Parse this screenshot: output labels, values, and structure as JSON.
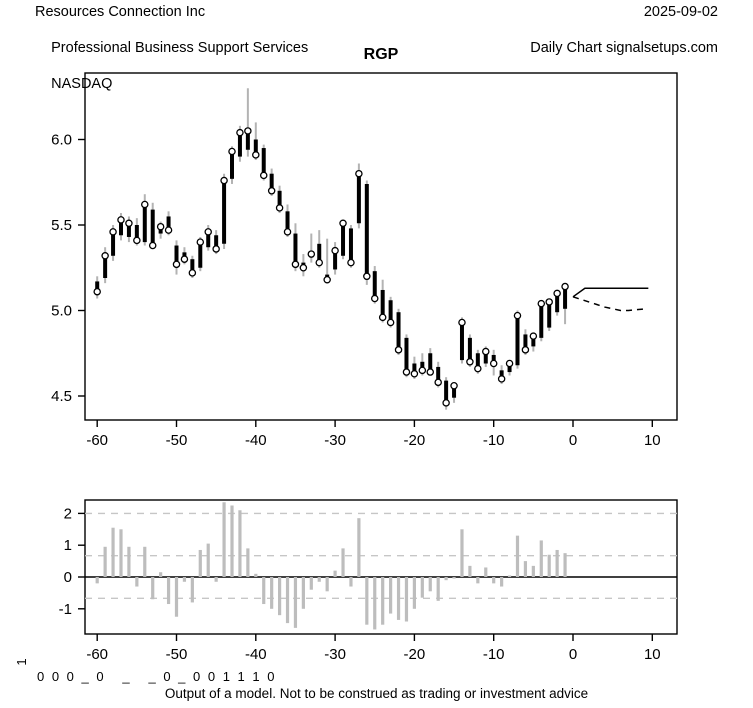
{
  "header": {
    "company": "Resources Connection Inc",
    "industry": "Professional Business Support Services",
    "exchange": "NASDAQ",
    "date": "2025-09-02",
    "source": "Daily Chart signalsetups.com"
  },
  "title": "RGP",
  "footer": {
    "signal_row": "0 0 0 _ 0   _   _ 0 _ 0 0 1 1 1 0",
    "disclaimer": "Output of a model. Not to be construed as trading or investment advice"
  },
  "colors": {
    "body": "#000000",
    "wick": "#b3b3b3",
    "circle_fill": "#ffffff",
    "indicator_bar": "#bdbdbd",
    "grid_dashed": "#c6c6c6",
    "axis": "#000000"
  },
  "chart_data": [
    {
      "type": "ohlc",
      "title": "RGP",
      "xlabel": "",
      "ylabel": "",
      "xticks": [
        -60,
        -50,
        -40,
        -30,
        -20,
        -10,
        0,
        10
      ],
      "yticks": [
        4.5,
        5.0,
        5.5,
        6.0
      ],
      "xlim": [
        -61.5,
        13.1
      ],
      "ylim": [
        4.36,
        6.38
      ],
      "grid": false,
      "x": [
        -60,
        -59,
        -58,
        -57,
        -56,
        -55,
        -54,
        -53,
        -52,
        -51,
        -50,
        -49,
        -48,
        -47,
        -46,
        -45,
        -44,
        -43,
        -42,
        -41,
        -40,
        -39,
        -38,
        -37,
        -36,
        -35,
        -34,
        -33,
        -32,
        -31,
        -30,
        -29,
        -28,
        -27,
        -26,
        -25,
        -24,
        -23,
        -22,
        -21,
        -20,
        -19,
        -18,
        -17,
        -16,
        -15,
        -14,
        -13,
        -12,
        -11,
        -10,
        -9,
        -8,
        -7,
        -6,
        -5,
        -4,
        -3,
        -2,
        -1
      ],
      "open": [
        5.17,
        5.19,
        5.32,
        5.44,
        5.43,
        5.5,
        5.4,
        5.59,
        5.45,
        5.55,
        5.38,
        5.34,
        5.3,
        5.25,
        5.37,
        5.44,
        5.39,
        5.77,
        5.9,
        5.94,
        6.0,
        5.95,
        5.8,
        5.7,
        5.58,
        5.45,
        5.28,
        5.31,
        5.39,
        5.21,
        5.24,
        5.32,
        5.48,
        5.51,
        5.74,
        5.23,
        5.12,
        5.06,
        4.99,
        4.84,
        4.69,
        4.7,
        4.75,
        4.67,
        4.59,
        4.49,
        4.71,
        4.84,
        4.75,
        4.69,
        4.74,
        4.65,
        4.64,
        4.68,
        4.86,
        4.79,
        4.84,
        4.9,
        4.99,
        5.01
      ],
      "high": [
        5.2,
        5.37,
        5.5,
        5.57,
        5.55,
        5.54,
        5.68,
        5.63,
        5.52,
        5.58,
        5.41,
        5.37,
        5.32,
        5.43,
        5.5,
        5.47,
        5.8,
        5.96,
        6.08,
        6.3,
        6.1,
        5.97,
        5.83,
        5.73,
        5.62,
        5.51,
        5.33,
        5.45,
        5.47,
        5.42,
        5.4,
        5.53,
        5.5,
        5.86,
        5.76,
        5.26,
        5.18,
        5.08,
        5.01,
        4.86,
        4.73,
        4.75,
        4.78,
        4.7,
        4.61,
        4.58,
        4.96,
        4.86,
        4.77,
        4.79,
        4.77,
        4.68,
        4.71,
        5.0,
        4.89,
        4.87,
        5.06,
        5.07,
        5.12,
        5.16
      ],
      "low": [
        5.07,
        5.16,
        5.29,
        5.41,
        5.4,
        5.38,
        5.38,
        5.36,
        5.42,
        5.44,
        5.21,
        5.27,
        5.19,
        5.23,
        5.35,
        5.33,
        5.36,
        5.74,
        5.87,
        5.9,
        5.88,
        5.76,
        5.67,
        5.57,
        5.43,
        5.23,
        5.2,
        5.28,
        5.25,
        5.16,
        5.21,
        5.3,
        5.25,
        5.48,
        5.15,
        5.04,
        4.93,
        4.9,
        4.74,
        4.61,
        4.6,
        4.62,
        4.62,
        4.55,
        4.42,
        4.46,
        4.69,
        4.67,
        4.63,
        4.67,
        4.62,
        4.57,
        4.62,
        4.66,
        4.74,
        4.76,
        4.82,
        4.88,
        4.97,
        4.92
      ],
      "close": [
        5.11,
        5.32,
        5.46,
        5.53,
        5.51,
        5.41,
        5.62,
        5.38,
        5.49,
        5.47,
        5.27,
        5.3,
        5.22,
        5.4,
        5.46,
        5.36,
        5.76,
        5.93,
        6.04,
        6.05,
        5.91,
        5.79,
        5.7,
        5.6,
        5.46,
        5.27,
        5.25,
        5.33,
        5.28,
        5.18,
        5.35,
        5.51,
        5.28,
        5.8,
        5.2,
        5.07,
        4.96,
        4.93,
        4.77,
        4.64,
        4.63,
        4.65,
        4.64,
        4.58,
        4.46,
        4.56,
        4.93,
        4.7,
        4.66,
        4.76,
        4.69,
        4.6,
        4.69,
        4.97,
        4.77,
        4.85,
        5.04,
        5.05,
        5.1,
        5.14
      ],
      "forecast_solid": [
        [
          0,
          5.08
        ],
        [
          1.5,
          5.13
        ],
        [
          9.5,
          5.13
        ]
      ],
      "forecast_dashed": [
        [
          0,
          5.08
        ],
        [
          1,
          5.065
        ],
        [
          2,
          5.05
        ],
        [
          3,
          5.035
        ],
        [
          4,
          5.02
        ],
        [
          5,
          5.01
        ],
        [
          6,
          5.0
        ],
        [
          7,
          5.0
        ],
        [
          8,
          5.005
        ],
        [
          9.3,
          5.01
        ]
      ]
    },
    {
      "type": "bar",
      "title": "",
      "xlabel": "",
      "ylabel": "1",
      "xticks": [
        -60,
        -50,
        -40,
        -30,
        -20,
        -10,
        0,
        10
      ],
      "yticks": [
        -1,
        0,
        1,
        2
      ],
      "xlim": [
        -61.5,
        13.1
      ],
      "ylim": [
        -1.81,
        2.44
      ],
      "hlines_dashed": [
        2.0,
        0.67,
        -0.67
      ],
      "hline_solid": 0,
      "legend": null,
      "x": [
        -60,
        -59,
        -58,
        -57,
        -56,
        -55,
        -54,
        -53,
        -52,
        -51,
        -50,
        -49,
        -48,
        -47,
        -46,
        -45,
        -44,
        -43,
        -42,
        -41,
        -40,
        -39,
        -38,
        -37,
        -36,
        -35,
        -34,
        -33,
        -32,
        -31,
        -30,
        -29,
        -28,
        -27,
        -26,
        -25,
        -24,
        -23,
        -22,
        -21,
        -20,
        -19,
        -18,
        -17,
        -16,
        -15,
        -14,
        -13,
        -12,
        -11,
        -10,
        -9,
        -8,
        -7,
        -6,
        -5,
        -4,
        -3,
        -2,
        -1
      ],
      "values": [
        -0.2,
        0.95,
        1.55,
        1.5,
        0.95,
        -0.3,
        0.95,
        -0.7,
        0.15,
        -0.85,
        -1.25,
        -0.15,
        -0.8,
        0.85,
        1.05,
        -0.15,
        2.35,
        2.25,
        2.1,
        0.9,
        0.1,
        -0.85,
        -1.0,
        -1.2,
        -1.45,
        -1.6,
        -1.0,
        -0.4,
        -0.15,
        -0.45,
        0.2,
        0.9,
        -0.3,
        1.85,
        -1.5,
        -1.65,
        -1.5,
        -1.15,
        -1.35,
        -1.4,
        -1.0,
        -0.65,
        -0.45,
        -0.75,
        -0.1,
        -0.05,
        1.5,
        0.35,
        -0.2,
        0.3,
        -0.2,
        -0.3,
        0.05,
        1.3,
        0.5,
        0.35,
        1.15,
        0.7,
        0.85,
        0.75
      ]
    }
  ]
}
